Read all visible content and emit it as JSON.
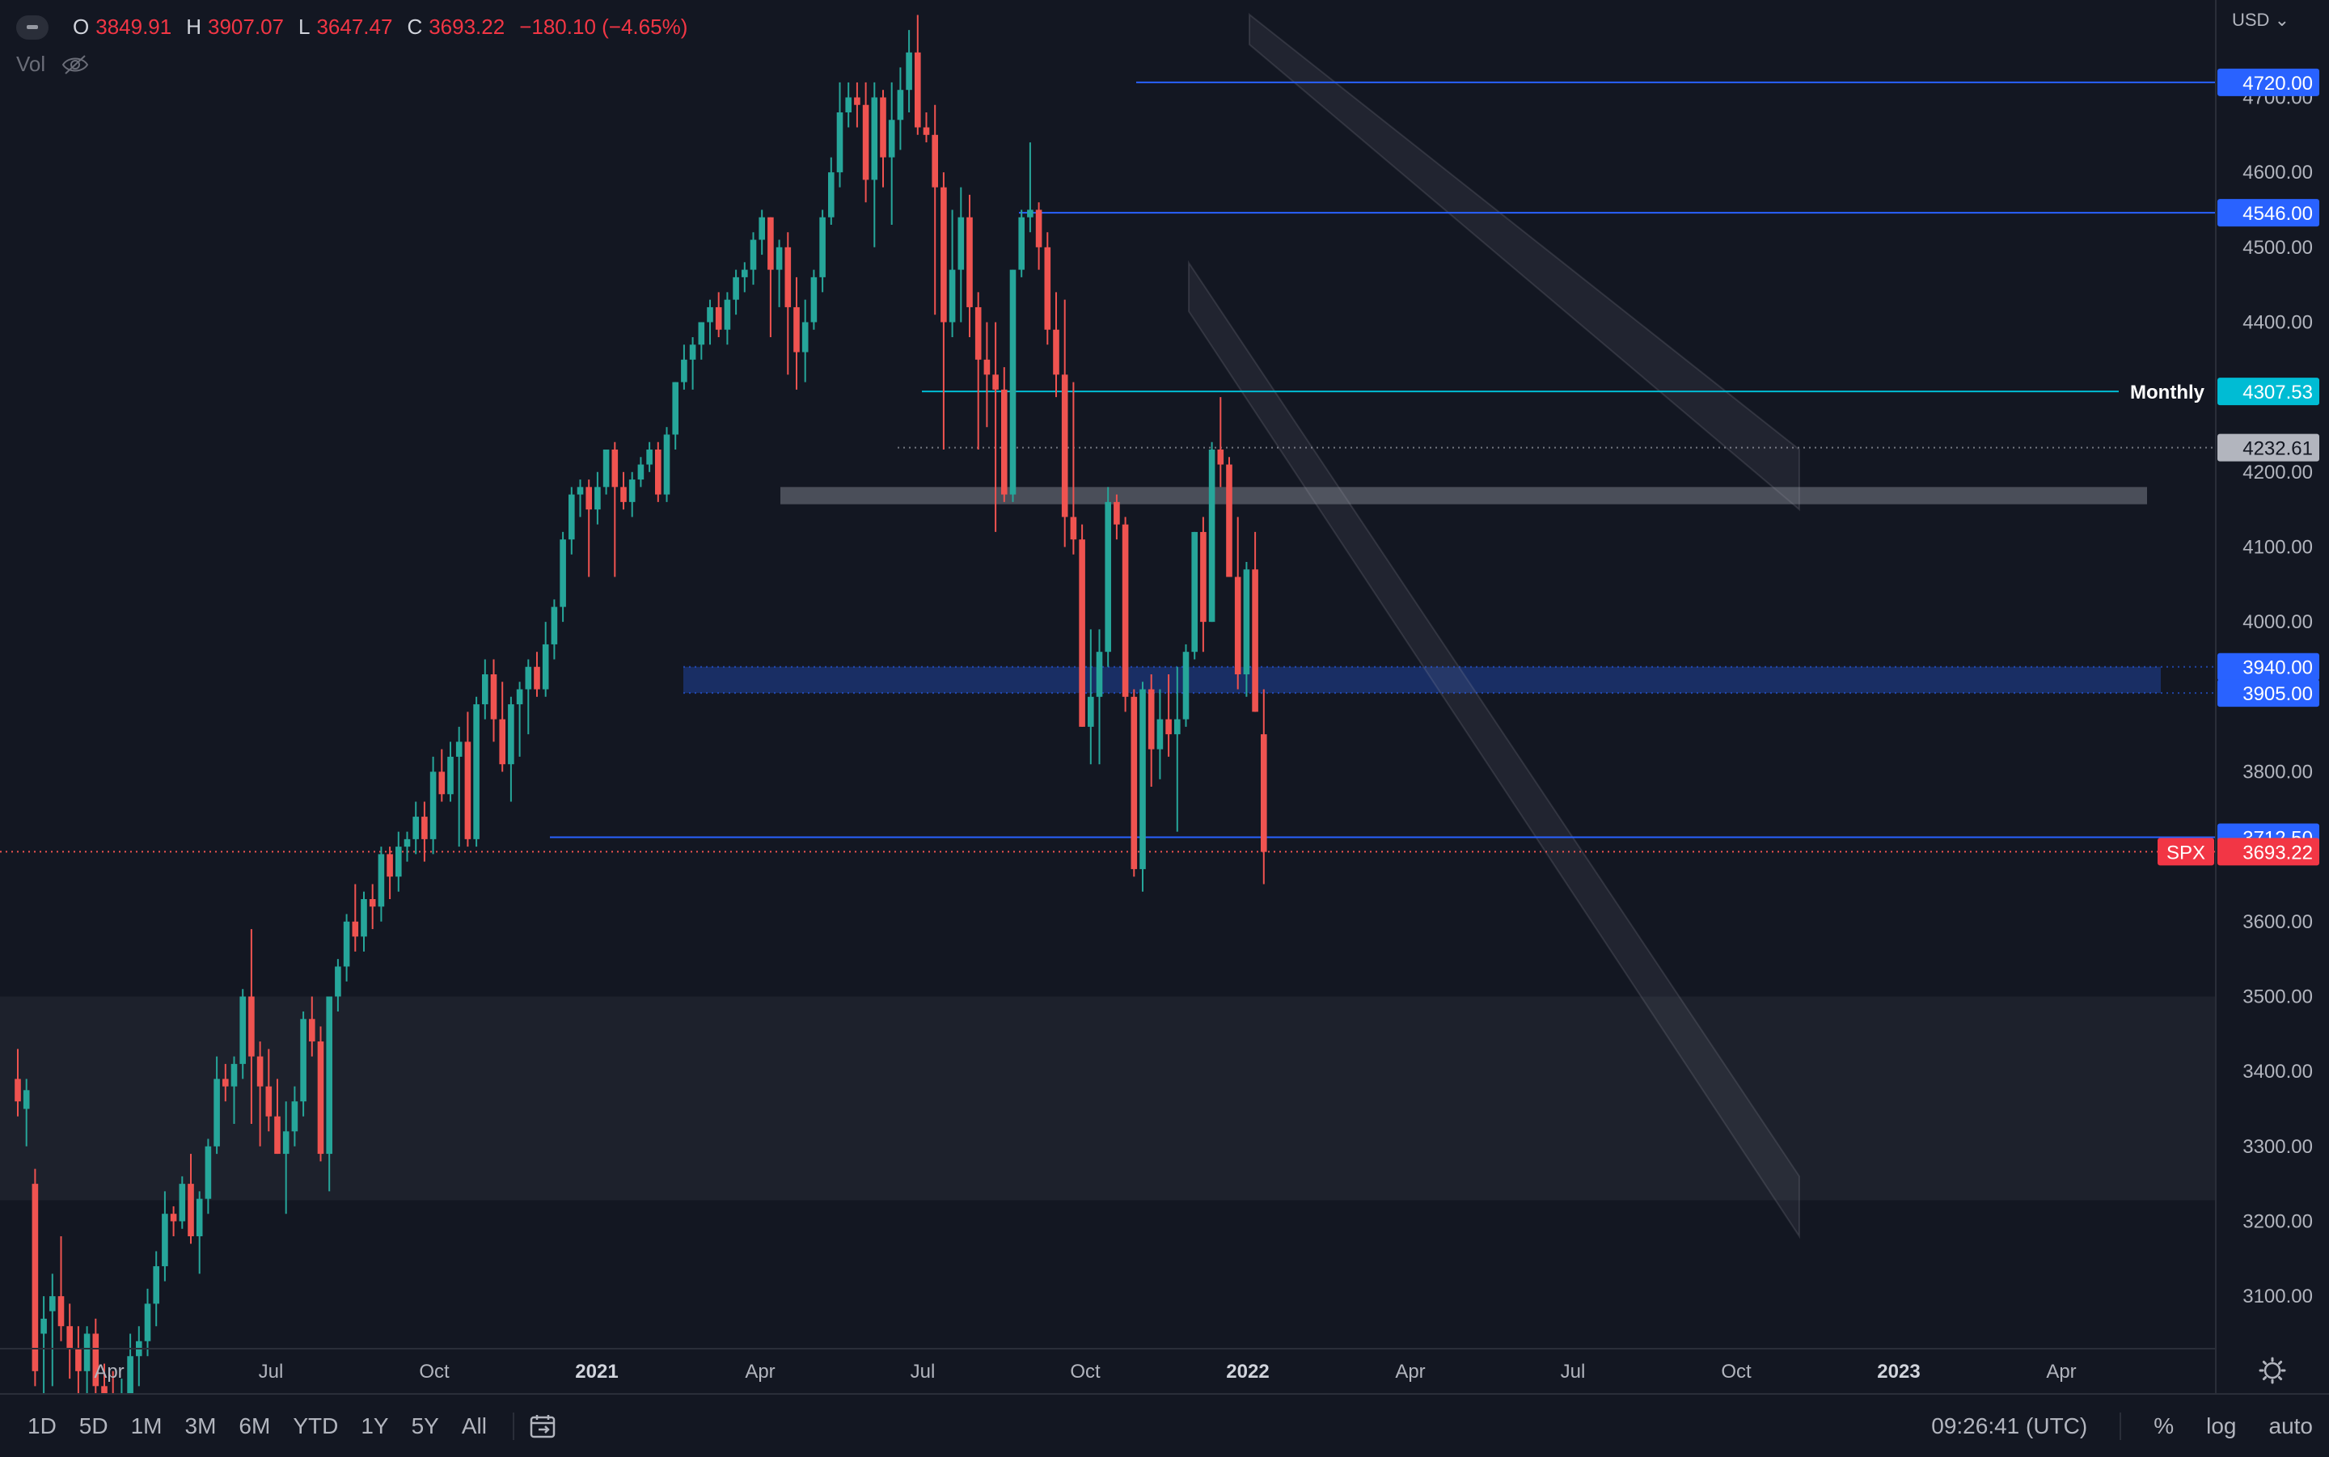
{
  "header": {
    "ohlc": [
      {
        "label": "O",
        "value": "3849.91"
      },
      {
        "label": "H",
        "value": "3907.07"
      },
      {
        "label": "L",
        "value": "3647.47"
      },
      {
        "label": "C",
        "value": "3693.22"
      }
    ],
    "change": "−180.10 (−4.65%)",
    "vol_label": "Vol"
  },
  "currency": "USD",
  "price_axis": {
    "ticks": [
      "4700.00",
      "4600.00",
      "4500.00",
      "4400.00",
      "4200.00",
      "4100.00",
      "4000.00",
      "3800.00",
      "3600.00",
      "3500.00",
      "3400.00",
      "3300.00",
      "3200.00",
      "3100.00"
    ],
    "labels": [
      {
        "price": 4720,
        "text": "4720.00",
        "color": "#2962ff",
        "line": "solid-blue"
      },
      {
        "price": 4546,
        "text": "4546.00",
        "color": "#2962ff",
        "line": "solid-blue"
      },
      {
        "price": 4307.53,
        "text": "4307.53",
        "color": "#00bcd4",
        "line": "solid-cyan",
        "tag": "Monthly"
      },
      {
        "price": 4232.61,
        "text": "4232.61",
        "color": "#b2b5be",
        "line": "dotted"
      },
      {
        "price": 3940,
        "text": "3940.00",
        "color": "#2962ff",
        "line": "dotted"
      },
      {
        "price": 3905,
        "text": "3905.00",
        "color": "#2962ff",
        "line": "dotted"
      },
      {
        "price": 3712.5,
        "text": "3712.50",
        "color": "#2962ff",
        "line": "solid-blue"
      },
      {
        "price": 3693.22,
        "text": "3693.22",
        "color": "#f23645",
        "line": "dotted-red",
        "tag": "SPX"
      }
    ]
  },
  "time_axis": {
    "labels": [
      {
        "text": "Apr",
        "bold": false
      },
      {
        "text": "Jul",
        "bold": false
      },
      {
        "text": "Oct",
        "bold": false
      },
      {
        "text": "2021",
        "bold": true
      },
      {
        "text": "Apr",
        "bold": false
      },
      {
        "text": "Jul",
        "bold": false
      },
      {
        "text": "Oct",
        "bold": false
      },
      {
        "text": "2022",
        "bold": true
      },
      {
        "text": "Apr",
        "bold": false
      },
      {
        "text": "Jul",
        "bold": false
      },
      {
        "text": "Oct",
        "bold": false
      },
      {
        "text": "2023",
        "bold": true
      },
      {
        "text": "Apr",
        "bold": false
      }
    ]
  },
  "bottom_bar": {
    "timeframes": [
      "1D",
      "5D",
      "1M",
      "3M",
      "6M",
      "YTD",
      "1Y",
      "5Y",
      "All"
    ],
    "clock": "09:26:41 (UTC)",
    "percent": "%",
    "log": "log",
    "auto": "auto"
  },
  "colors": {
    "up": "#26a69a",
    "down": "#ef5350",
    "background": "#131722",
    "blue_line": "#2962ff",
    "cyan_line": "#00bcd4"
  },
  "chart_data": {
    "type": "candlestick",
    "symbol": "SPX",
    "interval": "weekly",
    "ylim": [
      3030,
      4830
    ],
    "zones": [
      {
        "from": 4157,
        "to": 4180,
        "color": "gray"
      },
      {
        "from": 3905,
        "to": 3940,
        "color": "blue"
      },
      {
        "from": 3228,
        "to": 3500,
        "color": "light"
      }
    ],
    "channel": [
      [
        4810,
        4150
      ],
      [
        4450,
        3180
      ]
    ],
    "candles": [
      [
        3390,
        3430,
        3340,
        3360
      ],
      [
        3350,
        3390,
        3300,
        3375
      ],
      [
        3250,
        3270,
        2980,
        3000
      ],
      [
        3050,
        3100,
        2950,
        3070
      ],
      [
        3080,
        3130,
        2980,
        3100
      ],
      [
        3100,
        3180,
        3040,
        3060
      ],
      [
        3060,
        3090,
        2990,
        3030
      ],
      [
        3030,
        3060,
        2960,
        3000
      ],
      [
        3000,
        3060,
        2950,
        3050
      ],
      [
        3050,
        3070,
        2960,
        2980
      ],
      [
        2980,
        3010,
        2920,
        2960
      ],
      [
        2960,
        3000,
        2880,
        2900
      ],
      [
        2900,
        2990,
        2860,
        2970
      ],
      [
        2970,
        3050,
        2940,
        3020
      ],
      [
        3020,
        3060,
        2980,
        3040
      ],
      [
        3040,
        3110,
        3020,
        3090
      ],
      [
        3090,
        3160,
        3060,
        3140
      ],
      [
        3140,
        3240,
        3120,
        3210
      ],
      [
        3210,
        3220,
        3180,
        3200
      ],
      [
        3200,
        3260,
        3190,
        3250
      ],
      [
        3250,
        3290,
        3170,
        3180
      ],
      [
        3180,
        3240,
        3130,
        3230
      ],
      [
        3230,
        3310,
        3210,
        3300
      ],
      [
        3300,
        3420,
        3290,
        3390
      ],
      [
        3390,
        3410,
        3360,
        3380
      ],
      [
        3380,
        3420,
        3330,
        3410
      ],
      [
        3410,
        3510,
        3390,
        3500
      ],
      [
        3500,
        3590,
        3330,
        3420
      ],
      [
        3420,
        3440,
        3300,
        3380
      ],
      [
        3380,
        3430,
        3320,
        3340
      ],
      [
        3340,
        3390,
        3290,
        3290
      ],
      [
        3290,
        3360,
        3210,
        3320
      ],
      [
        3320,
        3380,
        3300,
        3360
      ],
      [
        3360,
        3480,
        3340,
        3470
      ],
      [
        3470,
        3500,
        3420,
        3440
      ],
      [
        3440,
        3460,
        3280,
        3290
      ],
      [
        3290,
        3500,
        3240,
        3500
      ],
      [
        3500,
        3550,
        3480,
        3540
      ],
      [
        3540,
        3610,
        3520,
        3600
      ],
      [
        3600,
        3650,
        3560,
        3580
      ],
      [
        3580,
        3640,
        3560,
        3630
      ],
      [
        3630,
        3650,
        3590,
        3620
      ],
      [
        3620,
        3700,
        3600,
        3690
      ],
      [
        3690,
        3700,
        3630,
        3660
      ],
      [
        3660,
        3720,
        3640,
        3700
      ],
      [
        3700,
        3720,
        3680,
        3710
      ],
      [
        3710,
        3760,
        3690,
        3740
      ],
      [
        3740,
        3760,
        3680,
        3710
      ],
      [
        3710,
        3820,
        3690,
        3800
      ],
      [
        3800,
        3830,
        3760,
        3770
      ],
      [
        3770,
        3840,
        3760,
        3820
      ],
      [
        3820,
        3860,
        3700,
        3840
      ],
      [
        3840,
        3880,
        3700,
        3710
      ],
      [
        3710,
        3900,
        3700,
        3890
      ],
      [
        3890,
        3950,
        3870,
        3930
      ],
      [
        3930,
        3950,
        3840,
        3870
      ],
      [
        3870,
        3920,
        3800,
        3810
      ],
      [
        3810,
        3900,
        3760,
        3890
      ],
      [
        3890,
        3920,
        3820,
        3910
      ],
      [
        3910,
        3950,
        3850,
        3940
      ],
      [
        3940,
        3960,
        3900,
        3910
      ],
      [
        3910,
        4000,
        3900,
        3970
      ],
      [
        3970,
        4030,
        3950,
        4020
      ],
      [
        4020,
        4120,
        4000,
        4110
      ],
      [
        4110,
        4180,
        4090,
        4170
      ],
      [
        4170,
        4190,
        4140,
        4180
      ],
      [
        4180,
        4190,
        4060,
        4150
      ],
      [
        4150,
        4200,
        4130,
        4180
      ],
      [
        4180,
        4230,
        4170,
        4230
      ],
      [
        4230,
        4240,
        4060,
        4180
      ],
      [
        4180,
        4200,
        4150,
        4160
      ],
      [
        4160,
        4200,
        4140,
        4190
      ],
      [
        4190,
        4220,
        4180,
        4210
      ],
      [
        4210,
        4240,
        4200,
        4230
      ],
      [
        4230,
        4240,
        4160,
        4170
      ],
      [
        4170,
        4260,
        4160,
        4250
      ],
      [
        4250,
        4320,
        4230,
        4320
      ],
      [
        4320,
        4370,
        4310,
        4350
      ],
      [
        4350,
        4380,
        4310,
        4370
      ],
      [
        4370,
        4400,
        4350,
        4400
      ],
      [
        4400,
        4430,
        4370,
        4420
      ],
      [
        4420,
        4440,
        4380,
        4390
      ],
      [
        4390,
        4440,
        4370,
        4430
      ],
      [
        4430,
        4470,
        4410,
        4460
      ],
      [
        4460,
        4480,
        4440,
        4470
      ],
      [
        4470,
        4520,
        4450,
        4510
      ],
      [
        4510,
        4550,
        4490,
        4540
      ],
      [
        4540,
        4540,
        4380,
        4470
      ],
      [
        4470,
        4510,
        4420,
        4500
      ],
      [
        4500,
        4520,
        4330,
        4420
      ],
      [
        4420,
        4460,
        4310,
        4360
      ],
      [
        4360,
        4430,
        4320,
        4400
      ],
      [
        4400,
        4470,
        4390,
        4460
      ],
      [
        4460,
        4550,
        4440,
        4540
      ],
      [
        4540,
        4620,
        4530,
        4600
      ],
      [
        4600,
        4720,
        4580,
        4680
      ],
      [
        4680,
        4720,
        4660,
        4700
      ],
      [
        4700,
        4720,
        4660,
        4690
      ],
      [
        4690,
        4720,
        4560,
        4590
      ],
      [
        4590,
        4720,
        4500,
        4700
      ],
      [
        4700,
        4710,
        4580,
        4620
      ],
      [
        4620,
        4720,
        4530,
        4670
      ],
      [
        4670,
        4740,
        4630,
        4710
      ],
      [
        4710,
        4790,
        4680,
        4760
      ],
      [
        4760,
        4810,
        4650,
        4660
      ],
      [
        4660,
        4680,
        4640,
        4650
      ],
      [
        4650,
        4690,
        4410,
        4580
      ],
      [
        4580,
        4600,
        4230,
        4400
      ],
      [
        4400,
        4550,
        4380,
        4470
      ],
      [
        4470,
        4580,
        4400,
        4540
      ],
      [
        4540,
        4570,
        4380,
        4420
      ],
      [
        4420,
        4440,
        4230,
        4350
      ],
      [
        4350,
        4400,
        4260,
        4330
      ],
      [
        4330,
        4400,
        4120,
        4310
      ],
      [
        4310,
        4340,
        4160,
        4170
      ],
      [
        4170,
        4470,
        4160,
        4470
      ],
      [
        4470,
        4550,
        4460,
        4540
      ],
      [
        4540,
        4640,
        4520,
        4550
      ],
      [
        4550,
        4560,
        4470,
        4500
      ],
      [
        4500,
        4520,
        4370,
        4390
      ],
      [
        4390,
        4440,
        4300,
        4330
      ],
      [
        4330,
        4430,
        4100,
        4140
      ],
      [
        4140,
        4320,
        4090,
        4110
      ],
      [
        4110,
        4130,
        3860,
        3860
      ],
      [
        3860,
        3990,
        3810,
        3900
      ],
      [
        3900,
        3990,
        3810,
        3960
      ],
      [
        3960,
        4180,
        3940,
        4160
      ],
      [
        4160,
        4170,
        4110,
        4130
      ],
      [
        4130,
        4140,
        3880,
        3900
      ],
      [
        3900,
        3910,
        3660,
        3670
      ],
      [
        3670,
        3920,
        3640,
        3910
      ],
      [
        3910,
        3930,
        3780,
        3830
      ],
      [
        3830,
        3910,
        3790,
        3870
      ],
      [
        3870,
        3930,
        3820,
        3850
      ],
      [
        3850,
        3940,
        3720,
        3870
      ],
      [
        3870,
        3970,
        3860,
        3960
      ],
      [
        3960,
        4120,
        3950,
        4120
      ],
      [
        4120,
        4140,
        3960,
        4000
      ],
      [
        4000,
        4240,
        4000,
        4230
      ],
      [
        4230,
        4300,
        4180,
        4210
      ],
      [
        4210,
        4220,
        4060,
        4060
      ],
      [
        4060,
        4140,
        3910,
        3930
      ],
      [
        3930,
        4080,
        3900,
        4070
      ],
      [
        4070,
        4120,
        3880,
        3880
      ],
      [
        3850,
        3910,
        3650,
        3693
      ]
    ]
  }
}
